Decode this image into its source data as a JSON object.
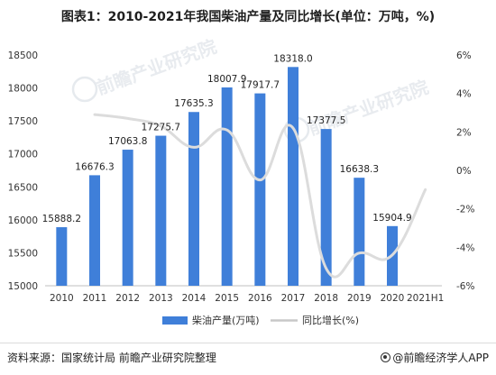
{
  "title": "图表1：2010-2021年我国柴油产量及同比增长(单位：万吨，%)",
  "source": "资料来源：国家统计局 前瞻产业研究院整理",
  "brand": "@前瞻经济学人APP",
  "watermark": {
    "logo_text_1": "前瞻产业研究院",
    "logo_text_2": "前瞻产业研究院"
  },
  "chart_data": {
    "type": "bar",
    "categories": [
      "2010",
      "2011",
      "2012",
      "2013",
      "2014",
      "2015",
      "2016",
      "2017",
      "2018",
      "2019",
      "2020",
      "2021H1"
    ],
    "series": [
      {
        "name": "柴油产量(万吨)",
        "type": "bar",
        "axis": "left",
        "color": "#3f7fd9",
        "values": [
          15888.2,
          16676.3,
          17063.8,
          17275.7,
          17635.3,
          18007.9,
          17917.7,
          18318.0,
          17377.5,
          16638.3,
          15904.9,
          null
        ],
        "labels": [
          "15888.2",
          "16676.3",
          "17063.8",
          "17275.7",
          "17635.3",
          "18007.9",
          "17917.7",
          "18318.0",
          "17377.5",
          "16638.3",
          "15904.9",
          ""
        ]
      },
      {
        "name": "同比增长(%)",
        "type": "line",
        "axis": "right",
        "color": "#dcdcdc",
        "values": [
          null,
          2.9,
          2.7,
          2.3,
          1.2,
          2.1,
          -0.5,
          2.2,
          -5.1,
          -4.3,
          -4.4,
          -1.0
        ]
      }
    ],
    "y_left": {
      "min": 15000,
      "max": 18500,
      "step": 500,
      "ticks": [
        "15000",
        "15500",
        "16000",
        "16500",
        "17000",
        "17500",
        "18000",
        "18500"
      ]
    },
    "y_right": {
      "min": -6,
      "max": 6,
      "step": 2,
      "ticks": [
        "-6%",
        "-4%",
        "-2%",
        "0%",
        "2%",
        "4%",
        "6%"
      ]
    },
    "legend_position": "bottom",
    "grid": false
  }
}
